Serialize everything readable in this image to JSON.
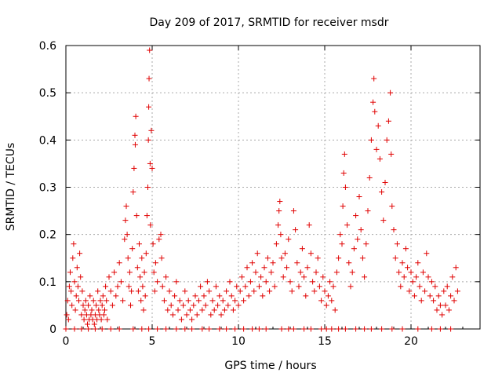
{
  "chart_data": {
    "type": "scatter",
    "title": "Day 209 of 2017, SRMTID for receiver msdr",
    "xlabel": "GPS time / hours",
    "ylabel": "SRMTID / TECUs",
    "xlim": [
      0,
      24
    ],
    "ylim": [
      0,
      0.6
    ],
    "xticks": [
      0,
      5,
      10,
      15,
      20
    ],
    "yticks": [
      0,
      0.1,
      0.2,
      0.3,
      0.4,
      0.5,
      0.6
    ],
    "xtick_labels": [
      "0",
      "5",
      "10",
      "15",
      "20"
    ],
    "ytick_labels": [
      "0",
      "0.1",
      "0.2",
      "0.3",
      "0.4",
      "0.5",
      "0.6"
    ],
    "grid": true,
    "marker": "+",
    "color": "#e00000",
    "series": [
      {
        "name": "SRMTID",
        "points": [
          [
            0.05,
            0.03
          ],
          [
            0.1,
            0.06
          ],
          [
            0.15,
            0.02
          ],
          [
            0.2,
            0.09
          ],
          [
            0.25,
            0.12
          ],
          [
            0.3,
            0.08
          ],
          [
            0.35,
            0.05
          ],
          [
            0.4,
            0.15
          ],
          [
            0.45,
            0.18
          ],
          [
            0.5,
            0.1
          ],
          [
            0.55,
            0.04
          ],
          [
            0.6,
            0.07
          ],
          [
            0.65,
            0.13
          ],
          [
            0.7,
            0.09
          ],
          [
            0.75,
            0.06
          ],
          [
            0.8,
            0.16
          ],
          [
            0.85,
            0.11
          ],
          [
            0.9,
            0.03
          ],
          [
            0.95,
            0.08
          ],
          [
            1.0,
            0.05
          ],
          [
            1.05,
            0.02
          ],
          [
            1.1,
            0.04
          ],
          [
            1.15,
            0.06
          ],
          [
            1.2,
            0.03
          ],
          [
            1.25,
            0.01
          ],
          [
            1.3,
            0.05
          ],
          [
            1.35,
            0.02
          ],
          [
            1.4,
            0.07
          ],
          [
            1.45,
            0.03
          ],
          [
            1.5,
            0.04
          ],
          [
            1.55,
            0.02
          ],
          [
            1.6,
            0.06
          ],
          [
            1.65,
            0.01
          ],
          [
            1.7,
            0.03
          ],
          [
            1.75,
            0.05
          ],
          [
            1.8,
            0.02
          ],
          [
            1.85,
            0.08
          ],
          [
            1.9,
            0.04
          ],
          [
            1.95,
            0.03
          ],
          [
            2.0,
            0.06
          ],
          [
            2.05,
            0.02
          ],
          [
            2.1,
            0.05
          ],
          [
            2.15,
            0.07
          ],
          [
            2.2,
            0.03
          ],
          [
            2.25,
            0.04
          ],
          [
            2.3,
            0.09
          ],
          [
            2.35,
            0.06
          ],
          [
            2.4,
            0.02
          ],
          [
            2.5,
            0.11
          ],
          [
            2.6,
            0.08
          ],
          [
            2.7,
            0.05
          ],
          [
            2.8,
            0.12
          ],
          [
            2.9,
            0.07
          ],
          [
            3.0,
            0.09
          ],
          [
            3.1,
            0.14
          ],
          [
            3.2,
            0.1
          ],
          [
            3.3,
            0.06
          ],
          [
            3.4,
            0.19
          ],
          [
            3.45,
            0.23
          ],
          [
            3.5,
            0.26
          ],
          [
            3.55,
            0.2
          ],
          [
            3.6,
            0.15
          ],
          [
            3.65,
            0.09
          ],
          [
            3.7,
            0.12
          ],
          [
            3.75,
            0.05
          ],
          [
            3.8,
            0.08
          ],
          [
            3.85,
            0.17
          ],
          [
            3.9,
            0.29
          ],
          [
            3.95,
            0.34
          ],
          [
            4.0,
            0.41
          ],
          [
            4.02,
            0.39
          ],
          [
            4.05,
            0.45
          ],
          [
            4.1,
            0.24
          ],
          [
            4.15,
            0.13
          ],
          [
            4.2,
            0.08
          ],
          [
            4.25,
            0.18
          ],
          [
            4.3,
            0.11
          ],
          [
            4.35,
            0.06
          ],
          [
            4.4,
            0.15
          ],
          [
            4.45,
            0.09
          ],
          [
            4.5,
            0.04
          ],
          [
            4.55,
            0.12
          ],
          [
            4.6,
            0.07
          ],
          [
            4.65,
            0.16
          ],
          [
            4.7,
            0.24
          ],
          [
            4.75,
            0.3
          ],
          [
            4.78,
            0.4
          ],
          [
            4.8,
            0.47
          ],
          [
            4.82,
            0.53
          ],
          [
            4.85,
            0.59
          ],
          [
            4.88,
            0.35
          ],
          [
            4.9,
            0.22
          ],
          [
            4.95,
            0.42
          ],
          [
            5.0,
            0.34
          ],
          [
            5.05,
            0.18
          ],
          [
            5.1,
            0.12
          ],
          [
            5.15,
            0.08
          ],
          [
            5.2,
            0.14
          ],
          [
            5.3,
            0.1
          ],
          [
            5.4,
            0.19
          ],
          [
            5.5,
            0.2
          ],
          [
            5.55,
            0.15
          ],
          [
            5.6,
            0.09
          ],
          [
            5.7,
            0.06
          ],
          [
            5.8,
            0.11
          ],
          [
            5.9,
            0.04
          ],
          [
            6.0,
            0.08
          ],
          [
            6.1,
            0.05
          ],
          [
            6.2,
            0.03
          ],
          [
            6.3,
            0.07
          ],
          [
            6.4,
            0.1
          ],
          [
            6.5,
            0.04
          ],
          [
            6.6,
            0.06
          ],
          [
            6.7,
            0.02
          ],
          [
            6.8,
            0.05
          ],
          [
            6.9,
            0.08
          ],
          [
            7.0,
            0.03
          ],
          [
            7.1,
            0.06
          ],
          [
            7.2,
            0.04
          ],
          [
            7.3,
            0.02
          ],
          [
            7.4,
            0.05
          ],
          [
            7.5,
            0.07
          ],
          [
            7.6,
            0.03
          ],
          [
            7.7,
            0.06
          ],
          [
            7.8,
            0.09
          ],
          [
            7.9,
            0.04
          ],
          [
            8.0,
            0.07
          ],
          [
            8.1,
            0.05
          ],
          [
            8.2,
            0.1
          ],
          [
            8.3,
            0.08
          ],
          [
            8.4,
            0.03
          ],
          [
            8.5,
            0.06
          ],
          [
            8.6,
            0.04
          ],
          [
            8.7,
            0.09
          ],
          [
            8.8,
            0.05
          ],
          [
            8.9,
            0.07
          ],
          [
            9.0,
            0.03
          ],
          [
            9.1,
            0.06
          ],
          [
            9.2,
            0.04
          ],
          [
            9.3,
            0.08
          ],
          [
            9.4,
            0.05
          ],
          [
            9.5,
            0.1
          ],
          [
            9.6,
            0.07
          ],
          [
            9.7,
            0.04
          ],
          [
            9.8,
            0.06
          ],
          [
            9.9,
            0.09
          ],
          [
            10.0,
            0.05
          ],
          [
            10.1,
            0.08
          ],
          [
            10.2,
            0.11
          ],
          [
            10.3,
            0.06
          ],
          [
            10.4,
            0.09
          ],
          [
            10.5,
            0.13
          ],
          [
            10.6,
            0.07
          ],
          [
            10.7,
            0.1
          ],
          [
            10.8,
            0.14
          ],
          [
            10.9,
            0.08
          ],
          [
            11.0,
            0.12
          ],
          [
            11.1,
            0.16
          ],
          [
            11.2,
            0.09
          ],
          [
            11.3,
            0.11
          ],
          [
            11.4,
            0.07
          ],
          [
            11.5,
            0.13
          ],
          [
            11.6,
            0.1
          ],
          [
            11.7,
            0.15
          ],
          [
            11.8,
            0.08
          ],
          [
            11.9,
            0.12
          ],
          [
            12.0,
            0.14
          ],
          [
            12.1,
            0.09
          ],
          [
            12.2,
            0.18
          ],
          [
            12.3,
            0.22
          ],
          [
            12.35,
            0.25
          ],
          [
            12.4,
            0.27
          ],
          [
            12.45,
            0.2
          ],
          [
            12.5,
            0.15
          ],
          [
            12.6,
            0.11
          ],
          [
            12.7,
            0.16
          ],
          [
            12.8,
            0.13
          ],
          [
            12.9,
            0.19
          ],
          [
            13.0,
            0.1
          ],
          [
            13.1,
            0.08
          ],
          [
            13.2,
            0.25
          ],
          [
            13.3,
            0.21
          ],
          [
            13.4,
            0.14
          ],
          [
            13.5,
            0.09
          ],
          [
            13.6,
            0.12
          ],
          [
            13.7,
            0.17
          ],
          [
            13.8,
            0.11
          ],
          [
            13.9,
            0.07
          ],
          [
            14.0,
            0.13
          ],
          [
            14.1,
            0.22
          ],
          [
            14.2,
            0.16
          ],
          [
            14.3,
            0.1
          ],
          [
            14.4,
            0.08
          ],
          [
            14.5,
            0.12
          ],
          [
            14.6,
            0.15
          ],
          [
            14.7,
            0.09
          ],
          [
            14.8,
            0.06
          ],
          [
            14.9,
            0.11
          ],
          [
            15.0,
            0.08
          ],
          [
            15.1,
            0.05
          ],
          [
            15.2,
            0.07
          ],
          [
            15.3,
            0.1
          ],
          [
            15.4,
            0.06
          ],
          [
            15.5,
            0.09
          ],
          [
            15.6,
            0.04
          ],
          [
            15.7,
            0.12
          ],
          [
            15.8,
            0.15
          ],
          [
            15.9,
            0.2
          ],
          [
            16.0,
            0.18
          ],
          [
            16.05,
            0.26
          ],
          [
            16.1,
            0.33
          ],
          [
            16.15,
            0.37
          ],
          [
            16.2,
            0.3
          ],
          [
            16.3,
            0.22
          ],
          [
            16.4,
            0.14
          ],
          [
            16.5,
            0.09
          ],
          [
            16.6,
            0.12
          ],
          [
            16.7,
            0.17
          ],
          [
            16.8,
            0.24
          ],
          [
            16.9,
            0.19
          ],
          [
            17.0,
            0.28
          ],
          [
            17.1,
            0.21
          ],
          [
            17.2,
            0.15
          ],
          [
            17.3,
            0.11
          ],
          [
            17.4,
            0.18
          ],
          [
            17.5,
            0.25
          ],
          [
            17.6,
            0.32
          ],
          [
            17.7,
            0.4
          ],
          [
            17.8,
            0.48
          ],
          [
            17.85,
            0.53
          ],
          [
            17.9,
            0.46
          ],
          [
            18.0,
            0.38
          ],
          [
            18.1,
            0.43
          ],
          [
            18.2,
            0.36
          ],
          [
            18.3,
            0.29
          ],
          [
            18.4,
            0.23
          ],
          [
            18.5,
            0.31
          ],
          [
            18.6,
            0.4
          ],
          [
            18.7,
            0.44
          ],
          [
            18.8,
            0.5
          ],
          [
            18.85,
            0.37
          ],
          [
            18.9,
            0.26
          ],
          [
            19.0,
            0.21
          ],
          [
            19.1,
            0.15
          ],
          [
            19.2,
            0.18
          ],
          [
            19.3,
            0.12
          ],
          [
            19.4,
            0.09
          ],
          [
            19.5,
            0.14
          ],
          [
            19.6,
            0.11
          ],
          [
            19.7,
            0.17
          ],
          [
            19.8,
            0.13
          ],
          [
            19.9,
            0.08
          ],
          [
            20.0,
            0.12
          ],
          [
            20.1,
            0.1
          ],
          [
            20.2,
            0.07
          ],
          [
            20.3,
            0.11
          ],
          [
            20.4,
            0.14
          ],
          [
            20.5,
            0.09
          ],
          [
            20.6,
            0.06
          ],
          [
            20.7,
            0.12
          ],
          [
            20.8,
            0.08
          ],
          [
            20.9,
            0.16
          ],
          [
            21.0,
            0.11
          ],
          [
            21.1,
            0.07
          ],
          [
            21.2,
            0.1
          ],
          [
            21.3,
            0.06
          ],
          [
            21.4,
            0.09
          ],
          [
            21.5,
            0.04
          ],
          [
            21.6,
            0.07
          ],
          [
            21.7,
            0.05
          ],
          [
            21.8,
            0.03
          ],
          [
            21.9,
            0.08
          ],
          [
            22.0,
            0.05
          ],
          [
            22.1,
            0.09
          ],
          [
            22.2,
            0.04
          ],
          [
            22.3,
            0.07
          ],
          [
            22.4,
            0.11
          ],
          [
            22.5,
            0.06
          ],
          [
            22.6,
            0.13
          ],
          [
            22.7,
            0.08
          ]
        ],
        "zero_values_x": [
          0.0,
          0.5,
          0.9,
          1.3,
          1.7,
          2.1,
          2.6,
          3.1,
          3.9,
          4.4,
          4.8,
          5.3,
          5.8,
          6.4,
          6.9,
          7.3,
          7.9,
          8.3,
          8.9,
          9.3,
          9.8,
          10.3,
          10.8,
          11.2,
          11.6,
          12.5,
          12.9,
          13.2,
          13.8,
          14.2,
          14.8,
          15.1,
          15.4,
          15.8,
          16.2,
          16.8,
          17.3,
          17.7,
          18.3,
          18.9,
          19.5,
          20.4,
          21.2,
          21.7,
          22.3
        ]
      }
    ]
  }
}
